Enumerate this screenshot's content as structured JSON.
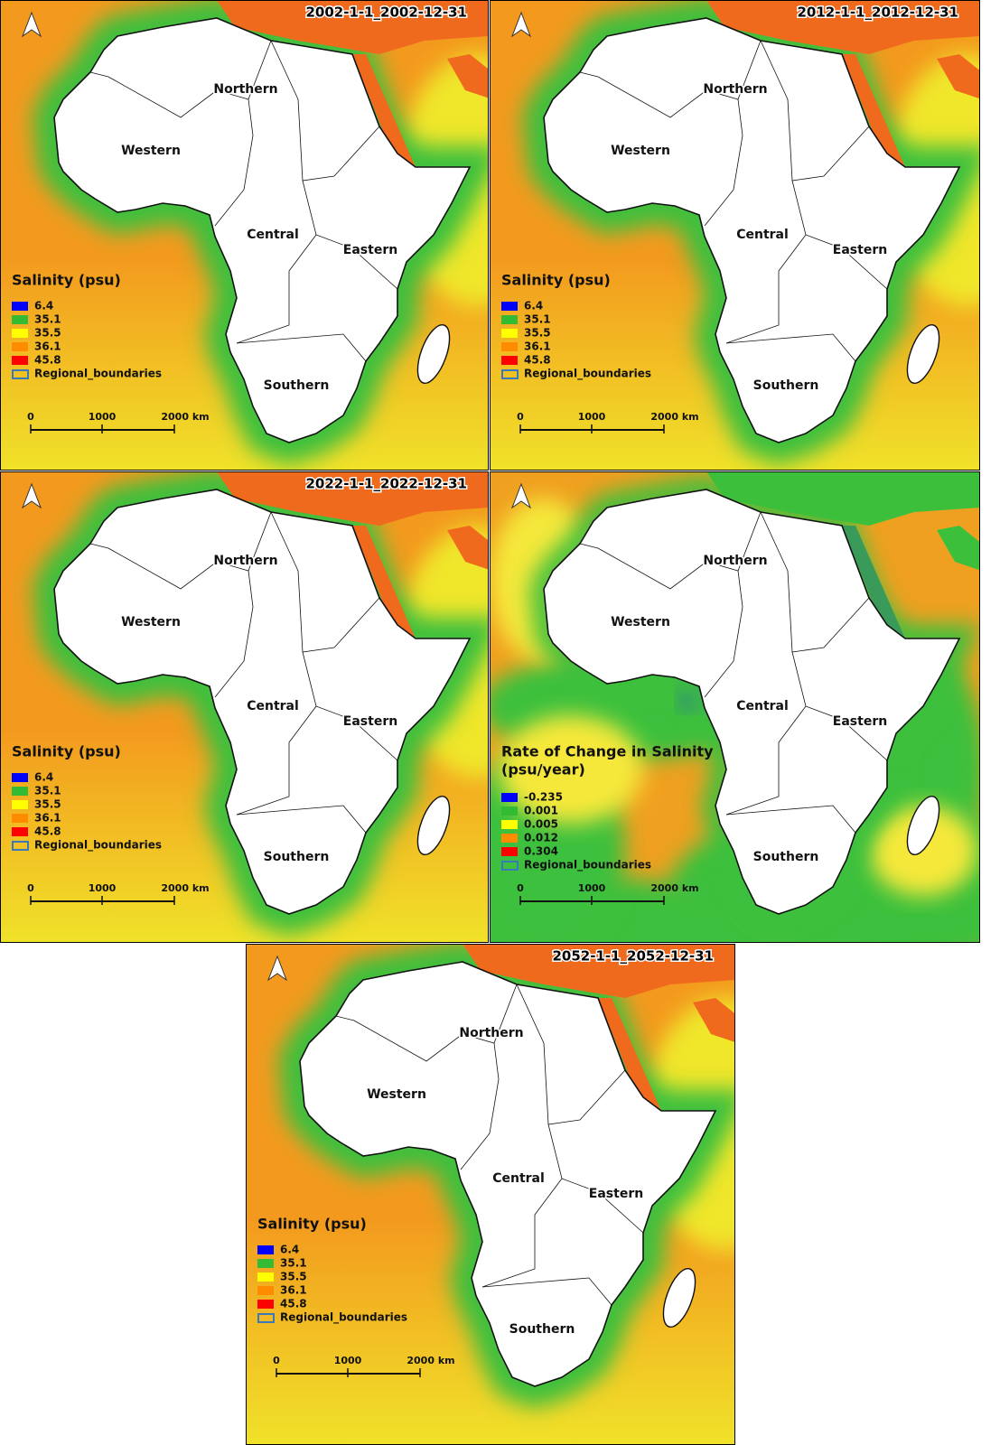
{
  "panels": [
    {
      "title": "2002-1-1_2002-12-31",
      "legend": {
        "title": [
          "Salinity (psu)"
        ],
        "items": [
          {
            "label": "6.4",
            "color": "#0000ff"
          },
          {
            "label": "35.1",
            "color": "#33bb33"
          },
          {
            "label": "35.5",
            "color": "#ffff00"
          },
          {
            "label": "36.1",
            "color": "#ff8c00"
          },
          {
            "label": "45.8",
            "color": "#ff0000"
          }
        ],
        "boundary": "Regional_boundaries"
      }
    },
    {
      "title": "2012-1-1_2012-12-31",
      "legend": {
        "title": [
          "Salinity (psu)"
        ],
        "items": [
          {
            "label": "6.4",
            "color": "#0000ff"
          },
          {
            "label": "35.1",
            "color": "#33bb33"
          },
          {
            "label": "35.5",
            "color": "#ffff00"
          },
          {
            "label": "36.1",
            "color": "#ff8c00"
          },
          {
            "label": "45.8",
            "color": "#ff0000"
          }
        ],
        "boundary": "Regional_boundaries"
      }
    },
    {
      "title": "2022-1-1_2022-12-31",
      "legend": {
        "title": [
          "Salinity (psu)"
        ],
        "items": [
          {
            "label": "6.4",
            "color": "#0000ff"
          },
          {
            "label": "35.1",
            "color": "#33bb33"
          },
          {
            "label": "35.5",
            "color": "#ffff00"
          },
          {
            "label": "36.1",
            "color": "#ff8c00"
          },
          {
            "label": "45.8",
            "color": "#ff0000"
          }
        ],
        "boundary": "Regional_boundaries"
      }
    },
    {
      "legend": {
        "title": [
          "Rate of Change in Salinity",
          "(psu/year)"
        ],
        "items": [
          {
            "label": "-0.235",
            "color": "#0000ff"
          },
          {
            "label": "0.001",
            "color": "#33bb33"
          },
          {
            "label": "0.005",
            "color": "#ffff00"
          },
          {
            "label": "0.012",
            "color": "#ff8c00"
          },
          {
            "label": "0.304",
            "color": "#ff0000"
          }
        ],
        "boundary": "Regional_boundaries"
      }
    },
    {
      "title": "2052-1-1_2052-12-31",
      "legend": {
        "title": [
          "Salinity (psu)"
        ],
        "items": [
          {
            "label": "6.4",
            "color": "#0000ff"
          },
          {
            "label": "35.1",
            "color": "#33bb33"
          },
          {
            "label": "35.5",
            "color": "#ffff00"
          },
          {
            "label": "36.1",
            "color": "#ff8c00"
          },
          {
            "label": "45.8",
            "color": "#ff0000"
          }
        ],
        "boundary": "Regional_boundaries"
      }
    }
  ],
  "regions": [
    "Northern",
    "Western",
    "Central",
    "Eastern",
    "Southern"
  ],
  "scale": [
    "0",
    "1000",
    "2000 km"
  ]
}
